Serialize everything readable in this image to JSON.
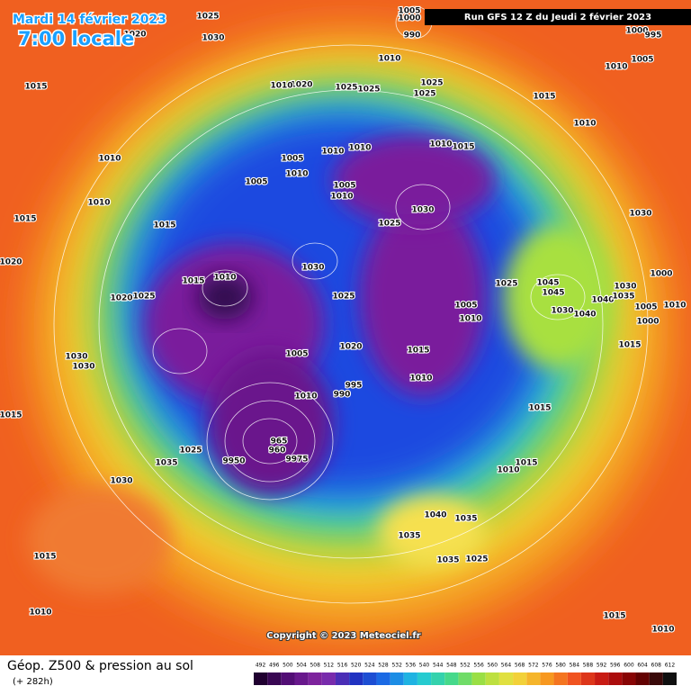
{
  "header": {
    "date": "Mardi 14 février 2023",
    "time": "7:00 locale",
    "run": "Run GFS 12 Z du Jeudi 2 février 2023"
  },
  "copyright": "Copyright © 2023 Meteociel.fr",
  "footer": {
    "title": "Géop. Z500 & pression au sol",
    "lead": "(+ 282h)"
  },
  "scale": [
    492,
    496,
    500,
    504,
    508,
    512,
    516,
    520,
    524,
    528,
    532,
    536,
    540,
    544,
    548,
    552,
    556,
    560,
    564,
    568,
    572,
    576,
    580,
    584,
    588,
    592,
    596,
    600,
    604,
    608,
    612
  ],
  "isobar_labels": [
    "1025",
    "1030",
    "1020",
    "1015",
    "1010",
    "1010",
    "1015",
    "1020",
    "1015",
    "1005",
    "1010",
    "1005",
    "1010",
    "1010",
    "1005",
    "1010",
    "1025",
    "1030",
    "1030",
    "1025",
    "1010",
    "1015",
    "1025",
    "1020",
    "1030",
    "1030",
    "1015",
    "1035",
    "1030",
    "1015",
    "1010",
    "1025",
    "1005",
    "1020",
    "1015",
    "1010",
    "995",
    "990",
    "1010",
    "965",
    "960",
    "9975",
    "9950",
    "1040",
    "1035",
    "1035",
    "1025",
    "1035",
    "1015",
    "1010",
    "1015",
    "1010",
    "1015",
    "1015",
    "1005",
    "1010",
    "1025",
    "1045",
    "1045",
    "1040",
    "1030",
    "1040",
    "1030",
    "1035",
    "1000",
    "1005",
    "1010",
    "1000",
    "1030",
    "1010",
    "1005",
    "1000",
    "1015",
    "1010",
    "1010",
    "1015",
    "1025",
    "1025",
    "1025",
    "1025",
    "1010",
    "1020",
    "1010",
    "1005",
    "1000",
    "990",
    "995"
  ]
}
